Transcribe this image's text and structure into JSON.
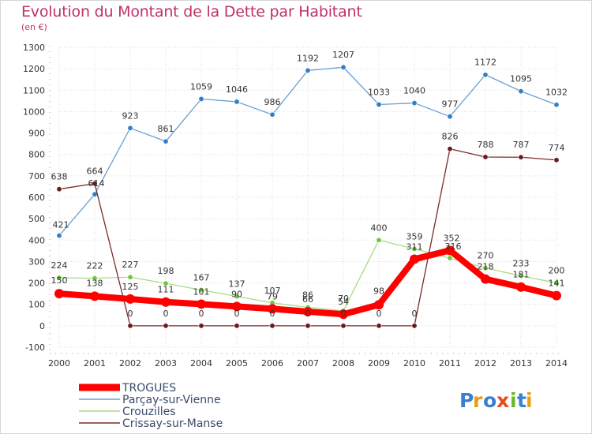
{
  "chart_data": {
    "type": "line",
    "title": "Evolution du Montant de la Dette par Habitant",
    "subtitle": "(en €)",
    "x": [
      "2000",
      "2001",
      "2002",
      "2003",
      "2004",
      "2005",
      "2006",
      "2007",
      "2008",
      "2009",
      "2010",
      "2011",
      "2012",
      "2013",
      "2014"
    ],
    "ylim": [
      -100,
      1300
    ],
    "yticks": [
      -100,
      0,
      100,
      200,
      300,
      400,
      500,
      600,
      700,
      800,
      900,
      1000,
      1100,
      1200,
      1300
    ],
    "grid": true,
    "legend_position": "bottom-left",
    "series": [
      {
        "name": "TROGUES",
        "color": "#ff0000",
        "point_color": "#ff0000",
        "values": [
          150,
          138,
          125,
          111,
          101,
          90,
          79,
          66,
          54,
          98,
          311,
          352,
          218,
          181,
          141
        ],
        "labels": [
          "150",
          "138",
          "125",
          "111",
          "101",
          "90",
          "79",
          "66",
          "54",
          "98",
          "311",
          "352",
          "218",
          "181",
          "141"
        ]
      },
      {
        "name": "Parçay-sur-Vienne",
        "color": "#6a9fd0",
        "point_color": "#2f7fc8",
        "values": [
          421,
          614,
          923,
          861,
          1059,
          1046,
          986,
          1192,
          1207,
          1033,
          1040,
          977,
          1172,
          1095,
          1032
        ],
        "labels": [
          "421",
          "614",
          "923",
          "861",
          "1059",
          "1046",
          "986",
          "1192",
          "1207",
          "1033",
          "1040",
          "977",
          "1172",
          "1095",
          "1032"
        ]
      },
      {
        "name": "Crouzilles",
        "color": "#a8dc88",
        "point_color": "#6cc93a",
        "values": [
          224,
          222,
          227,
          198,
          167,
          137,
          107,
          86,
          70,
          400,
          359,
          316,
          270,
          233,
          200
        ],
        "labels": [
          "224",
          "222",
          "227",
          "198",
          "167",
          "137",
          "107",
          "86",
          "70",
          "400",
          "359",
          "316",
          "270",
          "233",
          "200"
        ]
      },
      {
        "name": "Crissay-sur-Manse",
        "color": "#7a2a2a",
        "point_color": "#6a1a1a",
        "values": [
          638,
          664,
          0,
          0,
          0,
          0,
          0,
          0,
          0,
          0,
          0,
          826,
          788,
          787,
          774
        ],
        "labels": [
          "638",
          "664",
          "0",
          "0",
          "0",
          "0",
          "0",
          "0",
          "0",
          "0",
          "0",
          "826",
          "788",
          "787",
          "774"
        ]
      }
    ]
  },
  "logo": {
    "letters": [
      {
        "char": "P",
        "color": "#3a7fd0"
      },
      {
        "char": "r",
        "color": "#e89a1a"
      },
      {
        "char": "o",
        "color": "#3a7fd0"
      },
      {
        "char": "x",
        "color": "#e84a1a"
      },
      {
        "char": "i",
        "color": "#6ab82a"
      },
      {
        "char": "t",
        "color": "#3a7fd0"
      },
      {
        "char": "i",
        "color": "#e8a01a"
      }
    ]
  }
}
